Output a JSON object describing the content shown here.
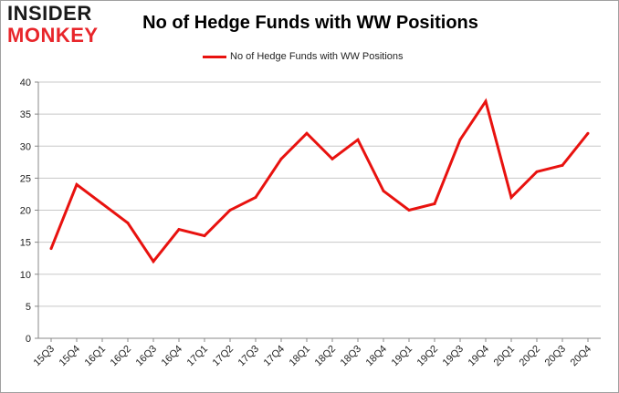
{
  "logo": {
    "line1": "INSIDER",
    "line2": "MONKEY"
  },
  "colors": {
    "series": "#e8120f",
    "grid": "#c8c8c8",
    "axis": "#888888",
    "logo_accent": "#e8262b"
  },
  "chart_data": {
    "type": "line",
    "title": "No of Hedge Funds with WW Positions",
    "xlabel": "",
    "ylabel": "",
    "categories": [
      "15Q3",
      "15Q4",
      "16Q1",
      "16Q2",
      "16Q3",
      "16Q4",
      "17Q1",
      "17Q2",
      "17Q3",
      "17Q4",
      "18Q1",
      "18Q2",
      "18Q3",
      "18Q4",
      "19Q1",
      "19Q2",
      "19Q3",
      "19Q4",
      "20Q1",
      "20Q2",
      "20Q3",
      "20Q4"
    ],
    "series": [
      {
        "name": "No of Hedge Funds with WW Positions",
        "values": [
          14,
          24,
          21,
          18,
          12,
          17,
          16,
          20,
          22,
          28,
          32,
          28,
          31,
          23,
          20,
          21,
          31,
          37,
          22,
          26,
          27,
          32
        ]
      }
    ],
    "ylim": [
      0,
      40
    ],
    "yticks": [
      0,
      5,
      10,
      15,
      20,
      25,
      30,
      35,
      40
    ],
    "grid": true,
    "legend_position": "top-center"
  }
}
